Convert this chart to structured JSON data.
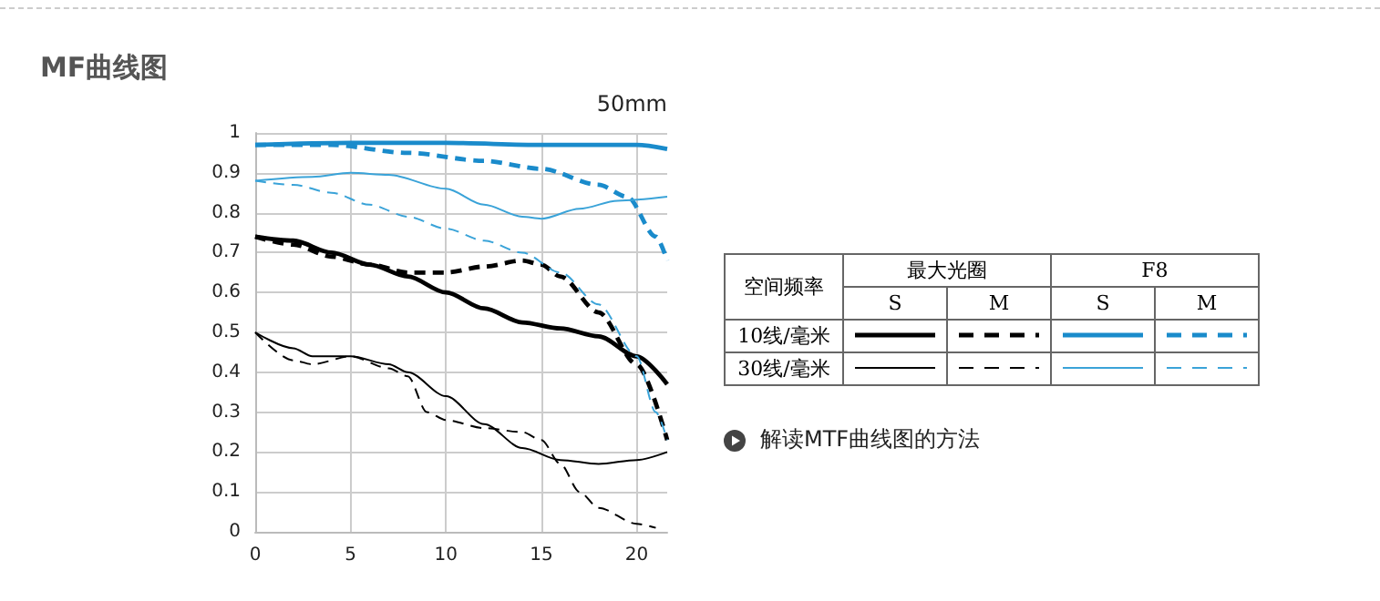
{
  "chart_data": {
    "type": "line",
    "title": "MF曲线图",
    "subtitle": "50mm",
    "xlim": [
      0,
      21.6
    ],
    "xticks": [
      0,
      5,
      10,
      15,
      20
    ],
    "ylim": [
      0,
      1
    ],
    "yticks": [
      0,
      0.1,
      0.2,
      0.3,
      0.4,
      0.5,
      0.6,
      0.7,
      0.8,
      0.9,
      1
    ],
    "grid": true,
    "marker": "none",
    "annotations": [
      "空间频率",
      "最大光圈",
      "F8",
      "S",
      "M",
      "S",
      "M",
      "10线/毫米",
      "30线/毫米",
      "解读MTF曲线图的方法"
    ],
    "series": [
      {
        "color": "#000000",
        "line_style": "solid",
        "x": [
          0,
          2,
          4,
          6,
          8,
          10,
          12,
          14,
          16,
          18,
          20,
          21.6
        ],
        "values": [
          0.74,
          0.73,
          0.7,
          0.67,
          0.64,
          0.6,
          0.56,
          0.525,
          0.51,
          0.49,
          0.44,
          0.37
        ]
      },
      {
        "color": "#000000",
        "line_style": "dashed",
        "x": [
          0,
          2,
          4,
          6,
          8,
          10,
          12,
          14,
          15,
          16,
          18,
          20,
          21.6
        ],
        "values": [
          0.74,
          0.72,
          0.69,
          0.67,
          0.65,
          0.65,
          0.665,
          0.68,
          0.67,
          0.64,
          0.55,
          0.42,
          0.23
        ]
      },
      {
        "color": "#000000",
        "line_style": "solid",
        "x": [
          0,
          2,
          3,
          5,
          7,
          8,
          10,
          12,
          14,
          16,
          18,
          20,
          21.6
        ],
        "values": [
          0.5,
          0.46,
          0.44,
          0.44,
          0.42,
          0.4,
          0.34,
          0.27,
          0.21,
          0.18,
          0.17,
          0.18,
          0.2
        ]
      },
      {
        "color": "#000000",
        "line_style": "dashed",
        "x": [
          0,
          2,
          3,
          5,
          7,
          8,
          9,
          10,
          12,
          14,
          15,
          16,
          17,
          18,
          20,
          21
        ],
        "values": [
          0.5,
          0.43,
          0.42,
          0.44,
          0.41,
          0.39,
          0.3,
          0.28,
          0.26,
          0.25,
          0.23,
          0.17,
          0.1,
          0.06,
          0.02,
          0.01
        ]
      },
      {
        "color": "#1a8bcb",
        "line_style": "solid",
        "x": [
          0,
          5,
          10,
          15,
          20,
          21.6
        ],
        "values": [
          0.97,
          0.975,
          0.975,
          0.97,
          0.97,
          0.96
        ]
      },
      {
        "color": "#1a8bcb",
        "line_style": "dashed",
        "x": [
          0,
          4,
          8,
          12,
          15,
          18,
          19.5,
          21,
          21.6
        ],
        "values": [
          0.97,
          0.97,
          0.95,
          0.93,
          0.91,
          0.87,
          0.84,
          0.74,
          0.68
        ]
      },
      {
        "color": "#3aa3d8",
        "line_style": "solid",
        "x": [
          0,
          3,
          5,
          7,
          10,
          12,
          14,
          15,
          17,
          19,
          21.6
        ],
        "values": [
          0.88,
          0.89,
          0.9,
          0.895,
          0.86,
          0.82,
          0.79,
          0.785,
          0.81,
          0.83,
          0.84
        ]
      },
      {
        "color": "#3aa3d8",
        "line_style": "dashed",
        "x": [
          0,
          2,
          4,
          6,
          8,
          10,
          12,
          14,
          16,
          18,
          20,
          21,
          21.6
        ],
        "values": [
          0.88,
          0.87,
          0.85,
          0.82,
          0.79,
          0.76,
          0.73,
          0.7,
          0.65,
          0.57,
          0.44,
          0.3,
          0.23
        ]
      }
    ]
  }
}
